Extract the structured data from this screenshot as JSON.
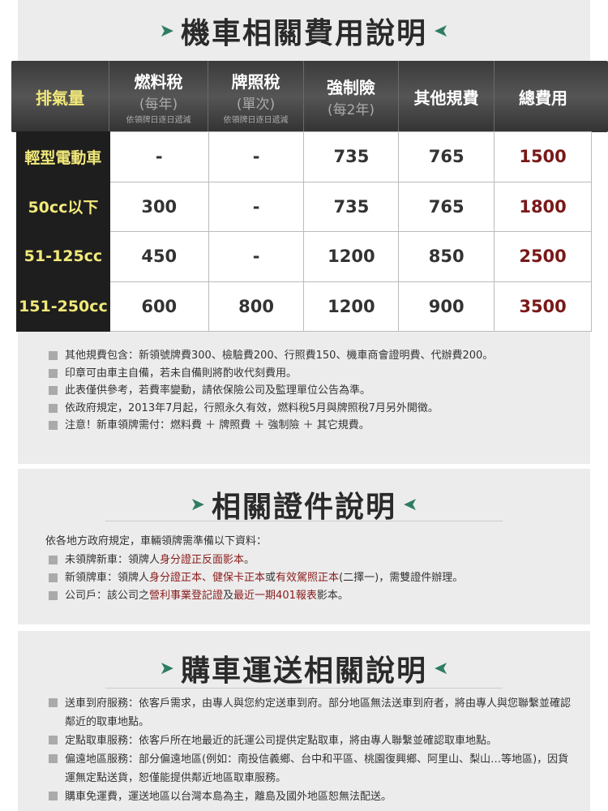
{
  "fees": {
    "title": "機車相關費用說明",
    "headers": [
      {
        "label": "排氣量"
      },
      {
        "label": "燃料稅",
        "sub": "(每年)",
        "note": "依領牌日逐日遞減"
      },
      {
        "label": "牌照稅",
        "sub": "(單次)",
        "note": "依領牌日逐日遞減"
      },
      {
        "label": "強制險",
        "sub": "(每2年)"
      },
      {
        "label": "其他規費"
      },
      {
        "label": "總費用"
      }
    ],
    "rows": [
      [
        "輕型電動車",
        "-",
        "-",
        "735",
        "765",
        "1500"
      ],
      [
        "50cc以下",
        "300",
        "-",
        "735",
        "765",
        "1800"
      ],
      [
        "51-125cc",
        "450",
        "-",
        "1200",
        "850",
        "2500"
      ],
      [
        "151-250cc",
        "600",
        "800",
        "1200",
        "900",
        "3500"
      ]
    ],
    "notes": [
      "其他規費包含：新領號牌費300、檢驗費200、行照費150、機車商會證明費、代辦費200。",
      "印章可由車主自備，若未自備則將酌收代刻費用。",
      "此表僅供參考，若費率變動，請依保險公司及監理單位公告為準。",
      "依政府規定，2013年7月起，行照永久有效，燃料稅5月與牌照稅7月另外開徵。",
      "注意！新車領牌需付：燃料費 ＋ 牌照費 ＋ 強制險 ＋ 其它規費。"
    ]
  },
  "docs": {
    "title": "相關證件說明",
    "intro": "依各地方政府規定，車輛領牌需準備以下資料：",
    "items": [
      [
        "未領牌新車：領牌人",
        "身分證正反面影本",
        "。"
      ],
      [
        "新領牌車：領牌人",
        "身分證正本、健保卡正本",
        "或",
        "有效駕照正本",
        "(二擇一)，需雙證件辦理。"
      ],
      [
        "公司戶：該公司之",
        "營利事業登記證",
        "及",
        "最近一期401報表",
        "影本。"
      ]
    ]
  },
  "delivery": {
    "title": "購車運送相關說明",
    "items": [
      "送車到府服務：依客戶需求，由專人與您約定送車到府。部分地區無法送車到府者，將由專人與您聯繫並確認鄰近的取車地點。",
      "定點取車服務：依客戶所在地最近的託運公司提供定點取車，將由專人聯繫並確認取車地點。",
      "偏遠地區服務：部分偏遠地區(例如：南投信義鄉、台中和平區、桃園復興鄉、阿里山、梨山…等地區)，因貨運無定點送貨，恕僅能提供鄰近地區取車服務。",
      "購車免運費，運送地區以台灣本島為主，離島及國外地區恕無法配送。"
    ]
  },
  "colors": {
    "accent_arrow": "#2e7d62",
    "row_header_text": "#f2e97a",
    "total_text": "#7a1818",
    "highlight_text": "#8a1c1c"
  }
}
